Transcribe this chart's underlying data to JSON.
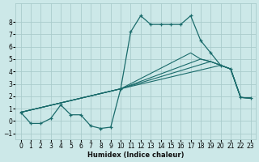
{
  "xlabel": "Humidex (Indice chaleur)",
  "bg_color": "#cce8e8",
  "grid_color": "#aacccc",
  "line_color": "#1a6b6b",
  "xlim": [
    -0.5,
    23.5
  ],
  "ylim": [
    -1.5,
    9.5
  ],
  "xticks": [
    0,
    1,
    2,
    3,
    4,
    5,
    6,
    7,
    8,
    9,
    10,
    11,
    12,
    13,
    14,
    15,
    16,
    17,
    18,
    19,
    20,
    21,
    22,
    23
  ],
  "yticks": [
    -1,
    0,
    1,
    2,
    3,
    4,
    5,
    6,
    7,
    8
  ],
  "lines": [
    {
      "x": [
        0,
        1,
        2,
        3,
        4,
        5,
        6,
        7,
        8,
        9,
        10,
        11,
        12,
        13,
        14,
        15,
        16,
        17,
        18,
        19,
        20,
        21,
        22,
        23
      ],
      "y": [
        0.7,
        -0.2,
        -0.2,
        0.2,
        1.3,
        0.5,
        0.5,
        -0.4,
        -0.6,
        -0.5,
        2.6,
        7.2,
        8.5,
        7.8,
        7.8,
        7.8,
        7.8,
        8.5,
        6.5,
        5.5,
        4.5,
        4.2,
        1.9,
        1.85
      ],
      "marker": true,
      "lw": 0.9
    },
    {
      "x": [
        0,
        10,
        20,
        21,
        22,
        23
      ],
      "y": [
        0.7,
        2.6,
        4.5,
        4.2,
        1.9,
        1.85
      ],
      "marker": false,
      "lw": 0.8
    },
    {
      "x": [
        0,
        10,
        19,
        20,
        21,
        22,
        23
      ],
      "y": [
        0.7,
        2.6,
        4.8,
        4.5,
        4.2,
        1.9,
        1.85
      ],
      "marker": false,
      "lw": 0.8
    },
    {
      "x": [
        0,
        10,
        18,
        19,
        20,
        21,
        22,
        23
      ],
      "y": [
        0.7,
        2.6,
        5.0,
        4.8,
        4.5,
        4.2,
        1.9,
        1.85
      ],
      "marker": false,
      "lw": 0.8
    },
    {
      "x": [
        0,
        10,
        17,
        18,
        19,
        20,
        21,
        22,
        23
      ],
      "y": [
        0.7,
        2.6,
        5.5,
        5.0,
        4.8,
        4.5,
        4.2,
        1.9,
        1.85
      ],
      "marker": false,
      "lw": 0.8
    }
  ]
}
